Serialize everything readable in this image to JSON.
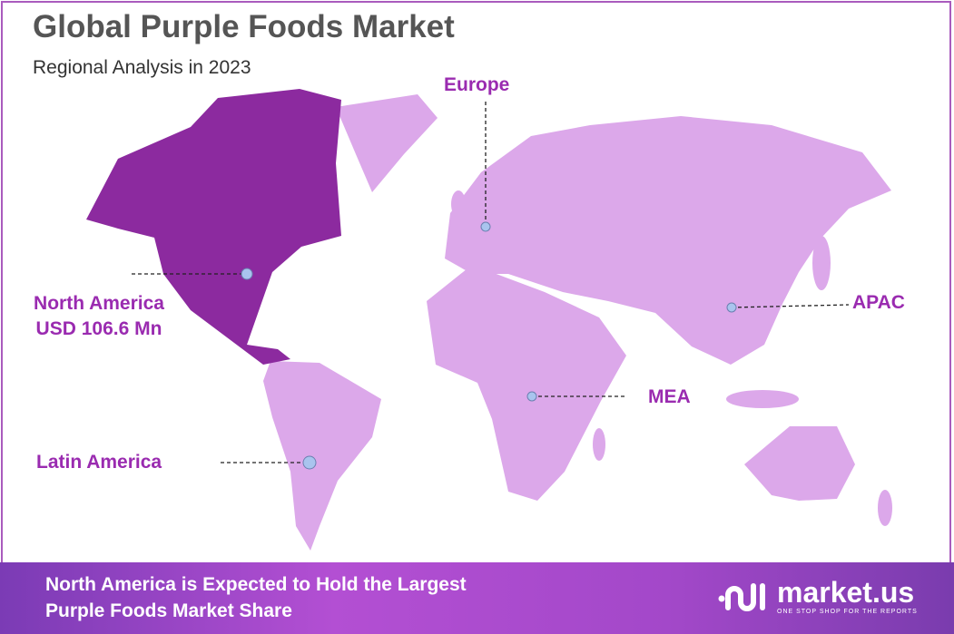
{
  "header": {
    "title": "Global Purple Foods Market",
    "subtitle": "Regional Analysis in 2023"
  },
  "colors": {
    "highlight_region": "#8c2a9f",
    "other_regions": "#dca8ea",
    "label": "#9a2bb0",
    "marker": "#a9c4ee"
  },
  "regions": [
    {
      "name": "North America",
      "value": "USD 106.6 Mn",
      "highlighted": true
    },
    {
      "name": "Europe"
    },
    {
      "name": "APAC"
    },
    {
      "name": "MEA"
    },
    {
      "name": "Latin America"
    }
  ],
  "footer": {
    "line1": "North America is Expected to Hold the Largest",
    "line2": "Purple Foods Market Share"
  },
  "logo": {
    "name": "market.us",
    "tagline": "ONE STOP SHOP FOR THE REPORTS"
  }
}
